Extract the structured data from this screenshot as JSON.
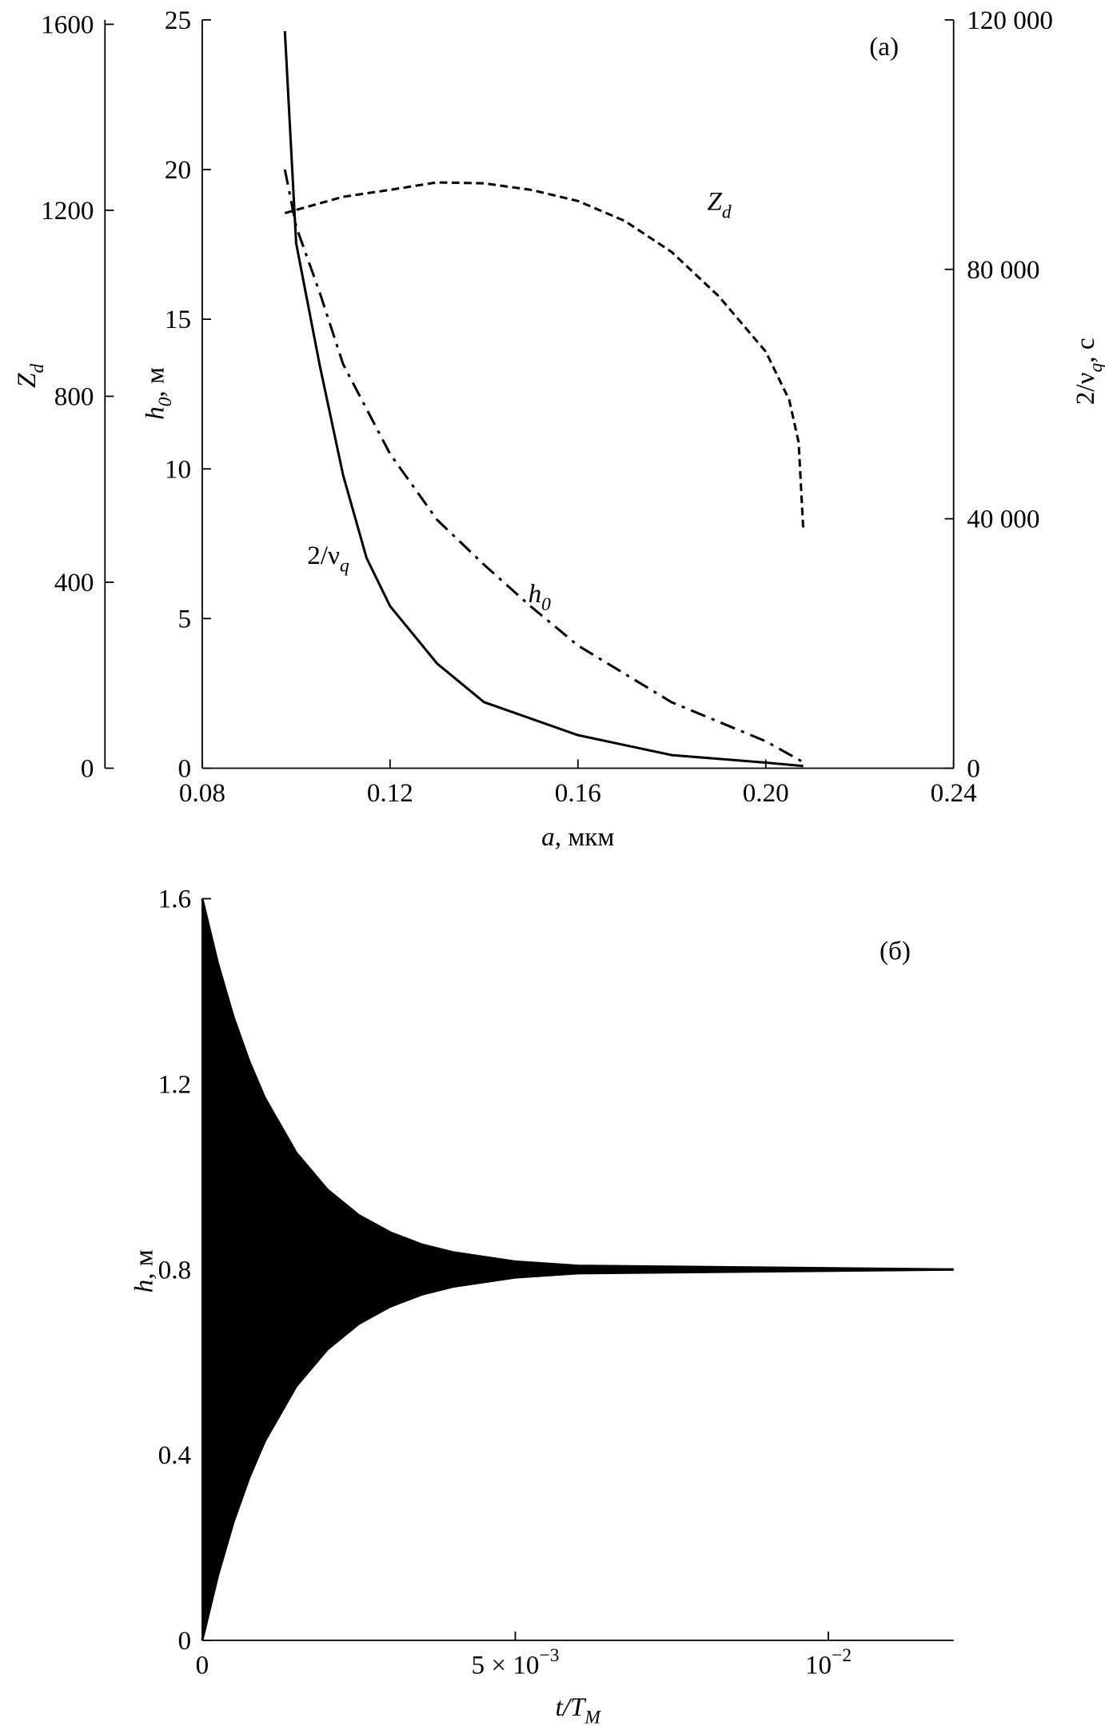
{
  "chart_data": [
    {
      "type": "line",
      "title": "(a)",
      "xlabel": [
        "a",
        ", мкм"
      ],
      "ylabel": [
        "h",
        "0",
        ", м"
      ],
      "y2label": [
        "2/ν",
        "q",
        ", с"
      ],
      "y3label": [
        "Z",
        "d"
      ],
      "xlim": [
        0.08,
        0.24
      ],
      "xticks": [
        0.08,
        0.12,
        0.16,
        {
          "value": 0.2,
          "label": "0.20"
        },
        0.24
      ],
      "ylim": [
        0,
        25
      ],
      "yticks": [
        0,
        5,
        10,
        15,
        20,
        25
      ],
      "y2lim": [
        0,
        120000
      ],
      "y2ticks": [
        0,
        {
          "value": 40000,
          "label": "40 000"
        },
        {
          "value": 80000,
          "label": "80 000"
        },
        {
          "value": 120000,
          "label": "120 000"
        }
      ],
      "y3lim": [
        0,
        1600
      ],
      "y3ticks": [
        0,
        400,
        800,
        1200,
        1600
      ],
      "annotations": [
        [
          "Z",
          "d"
        ],
        [
          "2/ν",
          "q"
        ],
        [
          "h",
          "0"
        ]
      ],
      "series": [
        {
          "axis": "y2",
          "color": "#000",
          "dash": "solid",
          "x": [
            0.0976,
            0.1,
            0.105,
            0.11,
            0.115,
            0.12,
            0.13,
            0.14,
            0.16,
            0.18,
            0.2,
            0.208
          ],
          "values": [
            118200,
            84200,
            64700,
            47000,
            33700,
            26000,
            16800,
            10600,
            5300,
            2100,
            900,
            350
          ]
        },
        {
          "axis": "y",
          "color": "#000",
          "dash": "dashdot",
          "x": [
            0.0976,
            0.1,
            0.105,
            0.11,
            0.12,
            0.13,
            0.14,
            0.15,
            0.16,
            0.18,
            0.2,
            0.208
          ],
          "values": [
            20,
            18.1,
            15.9,
            13.5,
            10.5,
            8.3,
            6.8,
            5.4,
            4.1,
            2.2,
            0.9,
            0.2
          ]
        },
        {
          "axis": "y3",
          "color": "#000",
          "dash": "dashed",
          "x": [
            0.0976,
            0.11,
            0.12,
            0.13,
            0.14,
            0.15,
            0.16,
            0.17,
            0.18,
            0.19,
            0.2,
            0.205,
            0.207,
            0.208
          ],
          "values": [
            1194,
            1229,
            1244,
            1260,
            1258,
            1244,
            1220,
            1177,
            1110,
            1015,
            896,
            792,
            701,
            511
          ]
        }
      ]
    },
    {
      "type": "area",
      "title": "(б)",
      "xlabel": [
        "t/T",
        "M"
      ],
      "ylabel": [
        "h",
        ", м"
      ],
      "xlim": [
        0,
        0.012
      ],
      "xticks": [
        0,
        {
          "value": 0.005,
          "label": [
            "5 × 10",
            "−3"
          ]
        },
        {
          "value": 0.01,
          "label": [
            "10",
            "−2"
          ]
        }
      ],
      "ylim": [
        0,
        1.6
      ],
      "yticks": [
        0,
        0.4,
        0.8,
        1.2,
        1.6
      ],
      "x": [
        0,
        0.00025,
        0.0005,
        0.00075,
        0.001,
        0.0015,
        0.002,
        0.0025,
        0.003,
        0.0035,
        0.004,
        0.005,
        0.006,
        0.012
      ],
      "series": [
        {
          "color": "#000",
          "values": [
            1.6,
            1.46,
            1.344,
            1.249,
            1.17,
            1.052,
            0.972,
            0.917,
            0.88,
            0.854,
            0.837,
            0.817,
            0.808,
            0.8
          ]
        },
        {
          "color": "#000",
          "values": [
            0,
            0.14,
            0.256,
            0.351,
            0.43,
            0.548,
            0.628,
            0.683,
            0.72,
            0.746,
            0.763,
            0.783,
            0.792,
            0.8
          ]
        }
      ]
    }
  ]
}
